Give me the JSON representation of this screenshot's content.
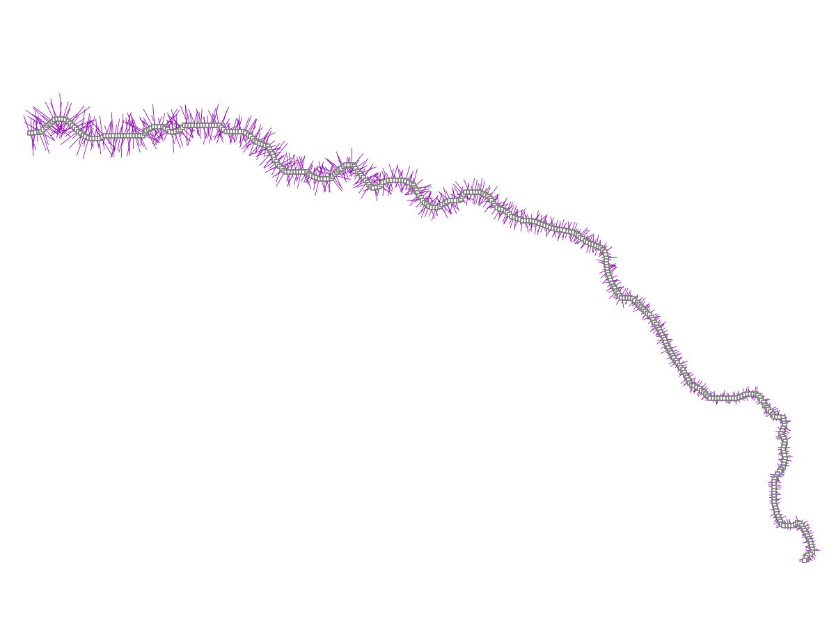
{
  "colors": {
    "background": "#ffffff",
    "path_cell_stroke": "#767676",
    "path_cell_fill": "#ffffff",
    "normal_line": "#8b00b0"
  }
}
